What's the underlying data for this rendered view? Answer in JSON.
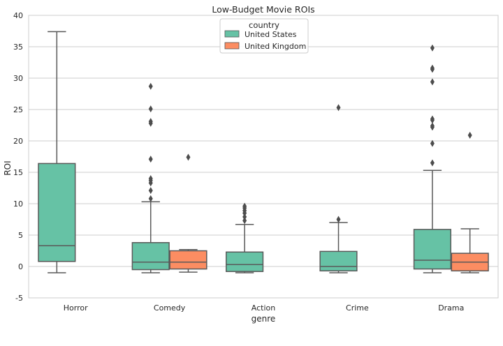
{
  "chart_data": {
    "type": "box",
    "title": "Low-Budget Movie ROIs",
    "xlabel": "genre",
    "ylabel": "ROI",
    "ylim": [
      -5,
      40
    ],
    "yticks": [
      -5,
      0,
      5,
      10,
      15,
      20,
      25,
      30,
      35,
      40
    ],
    "grid": "horizontal",
    "legend": {
      "title": "country",
      "position": "top-center",
      "entries": [
        "United States",
        "United Kingdom"
      ]
    },
    "categories": [
      "Horror",
      "Comedy",
      "Action",
      "Crime",
      "Drama"
    ],
    "series": [
      {
        "name": "United States",
        "color": "#66c2a5",
        "boxes": [
          {
            "category": "Horror",
            "whisker_low": -1.0,
            "q1": 0.8,
            "median": 3.3,
            "q3": 16.4,
            "whisker_high": 37.4,
            "outliers": []
          },
          {
            "category": "Comedy",
            "whisker_low": -1.0,
            "q1": -0.5,
            "median": 0.7,
            "q3": 3.8,
            "whisker_high": 10.3,
            "outliers": [
              10.8,
              12.1,
              13.3,
              13.7,
              14.0,
              17.1,
              22.8,
              23.1,
              25.1,
              28.7
            ]
          },
          {
            "category": "Action",
            "whisker_low": -1.0,
            "q1": -0.8,
            "median": 0.3,
            "q3": 2.3,
            "whisker_high": 6.7,
            "outliers": [
              7.3,
              7.9,
              8.5,
              8.9,
              9.3,
              9.6
            ]
          },
          {
            "category": "Crime",
            "whisker_low": -1.0,
            "q1": -0.7,
            "median": 0.0,
            "q3": 2.4,
            "whisker_high": 7.0,
            "outliers": [
              7.5,
              25.3
            ]
          },
          {
            "category": "Drama",
            "whisker_low": -1.0,
            "q1": -0.4,
            "median": 1.0,
            "q3": 5.9,
            "whisker_high": 15.3,
            "outliers": [
              16.5,
              19.6,
              22.2,
              22.4,
              23.3,
              23.5,
              29.4,
              31.4,
              31.6,
              34.8
            ]
          }
        ]
      },
      {
        "name": "United Kingdom",
        "color": "#fc8d62",
        "boxes": [
          {
            "category": "Comedy",
            "whisker_low": -0.9,
            "q1": -0.4,
            "median": 0.7,
            "q3": 2.5,
            "whisker_high": 2.7,
            "outliers": [
              17.4
            ]
          },
          {
            "category": "Drama",
            "whisker_low": -1.0,
            "q1": -0.7,
            "median": 0.7,
            "q3": 2.1,
            "whisker_high": 6.0,
            "outliers": [
              20.9
            ]
          }
        ]
      }
    ]
  }
}
